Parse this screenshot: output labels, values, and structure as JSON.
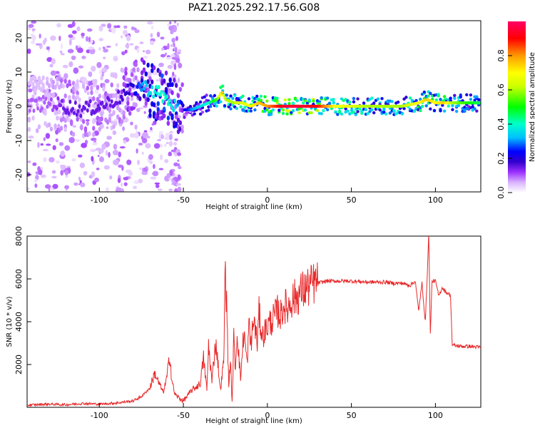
{
  "title": "PAZ1.2025.292.17.56.G08",
  "chart_data": [
    {
      "type": "heatmap",
      "xlabel": "Height of straight line (km)",
      "ylabel": "Frequency (Hz)",
      "xlim": [
        -143,
        127
      ],
      "ylim": [
        -25,
        25
      ],
      "x_ticks": [
        -100,
        -50,
        0,
        50,
        100
      ],
      "y_ticks": [
        -20,
        -10,
        0,
        10,
        20
      ],
      "x_tick_labels": [
        "-100",
        "-50",
        "0",
        "50",
        "100"
      ],
      "y_tick_labels": [
        "-20",
        "-10",
        "0",
        "10",
        "20"
      ],
      "colorbar": {
        "label": "Normalized spectral amplitude",
        "range": [
          0,
          1
        ],
        "ticks": [
          0.0,
          0.2,
          0.4,
          0.6,
          0.8
        ],
        "tick_labels": [
          "0.0",
          "0.2",
          "0.4",
          "0.6",
          "0.8"
        ],
        "colors": [
          "#ffffff",
          "#d9b3ff",
          "#9b30ff",
          "#3300cc",
          "#0000ff",
          "#00bfff",
          "#00ffcc",
          "#00ff00",
          "#ccff00",
          "#ffff00",
          "#ff9900",
          "#ff0000",
          "#ff0066"
        ]
      },
      "ridge": {
        "x": [
          -143,
          -130,
          -120,
          -110,
          -100,
          -90,
          -80,
          -75,
          -70,
          -65,
          -60,
          -55,
          -50,
          -45,
          -40,
          -35,
          -30,
          -27,
          -25,
          -20,
          -15,
          -10,
          -5,
          0,
          10,
          20,
          30,
          40,
          50,
          60,
          70,
          80,
          90,
          95,
          100,
          105,
          110,
          115,
          120,
          127
        ],
        "y": [
          0,
          1,
          0,
          -1,
          0,
          2,
          5,
          6,
          5,
          4,
          2,
          0,
          -1,
          -1,
          0,
          1,
          2,
          4,
          2,
          1,
          1,
          0,
          1,
          0,
          0,
          0,
          0,
          0,
          0,
          0,
          0,
          0,
          1,
          2,
          1,
          1,
          1,
          1,
          1,
          1
        ],
        "amplitude": [
          0.1,
          0.1,
          0.15,
          0.15,
          0.15,
          0.15,
          0.2,
          0.3,
          0.35,
          0.4,
          0.4,
          0.35,
          0.2,
          0.3,
          0.35,
          0.4,
          0.55,
          0.75,
          0.6,
          0.6,
          0.65,
          0.7,
          0.75,
          0.8,
          0.95,
          0.95,
          0.9,
          0.7,
          0.65,
          0.6,
          0.6,
          0.6,
          0.7,
          0.75,
          0.7,
          0.75,
          0.6,
          0.55,
          0.5,
          0.45
        ]
      }
    },
    {
      "type": "line",
      "xlabel": "Height of straight line (km)",
      "ylabel": "SNR (10 * v/v)",
      "xlim": [
        -143,
        127
      ],
      "ylim": [
        0,
        8000
      ],
      "x_ticks": [
        -100,
        -50,
        0,
        50,
        100
      ],
      "y_ticks": [
        2000,
        4000,
        6000,
        8000
      ],
      "x_tick_labels": [
        "-100",
        "-50",
        "0",
        "50",
        "100"
      ],
      "y_tick_labels": [
        "2000",
        "4000",
        "6000",
        "8000"
      ],
      "color": "#e8292a",
      "series": [
        {
          "x": [
            -143,
            -130,
            -120,
            -110,
            -100,
            -90,
            -80,
            -75,
            -70,
            -67,
            -65,
            -62,
            -60,
            -58,
            -57,
            -55,
            -52,
            -50,
            -45,
            -40,
            -38,
            -36,
            -35,
            -33,
            -31,
            -30,
            -28,
            -26,
            -25,
            -23,
            -22,
            -21,
            -20,
            -19,
            -18,
            -16,
            -14,
            -12,
            -11,
            -10,
            -8,
            -6,
            -5,
            -3,
            0,
            2,
            4,
            6,
            8,
            10,
            12,
            14,
            16,
            18,
            20,
            22,
            24,
            26,
            28,
            30,
            35,
            40,
            50,
            60,
            70,
            75,
            80,
            85,
            88,
            90,
            92,
            94,
            95,
            96,
            97,
            98,
            100,
            102,
            104,
            106,
            108,
            109,
            110,
            115,
            120,
            127
          ],
          "y": [
            100,
            150,
            120,
            180,
            150,
            200,
            300,
            500,
            900,
            1600,
            1200,
            700,
            1300,
            2500,
            1300,
            600,
            400,
            300,
            800,
            1100,
            2300,
            800,
            2900,
            1200,
            3000,
            2600,
            800,
            2100,
            6900,
            1000,
            2200,
            200,
            3200,
            1800,
            3600,
            1300,
            3600,
            2000,
            3900,
            2900,
            4100,
            3000,
            4400,
            3300,
            3800,
            4000,
            4200,
            4500,
            4300,
            4800,
            4600,
            5000,
            5100,
            5200,
            5400,
            5500,
            5600,
            5700,
            5800,
            5800,
            5900,
            5900,
            5900,
            5850,
            5850,
            5800,
            5800,
            5700,
            5900,
            4500,
            5800,
            4000,
            5900,
            8100,
            3400,
            5900,
            5900,
            5200,
            5600,
            5400,
            5300,
            5200,
            2900,
            2850,
            2850,
            2800
          ]
        }
      ]
    }
  ]
}
